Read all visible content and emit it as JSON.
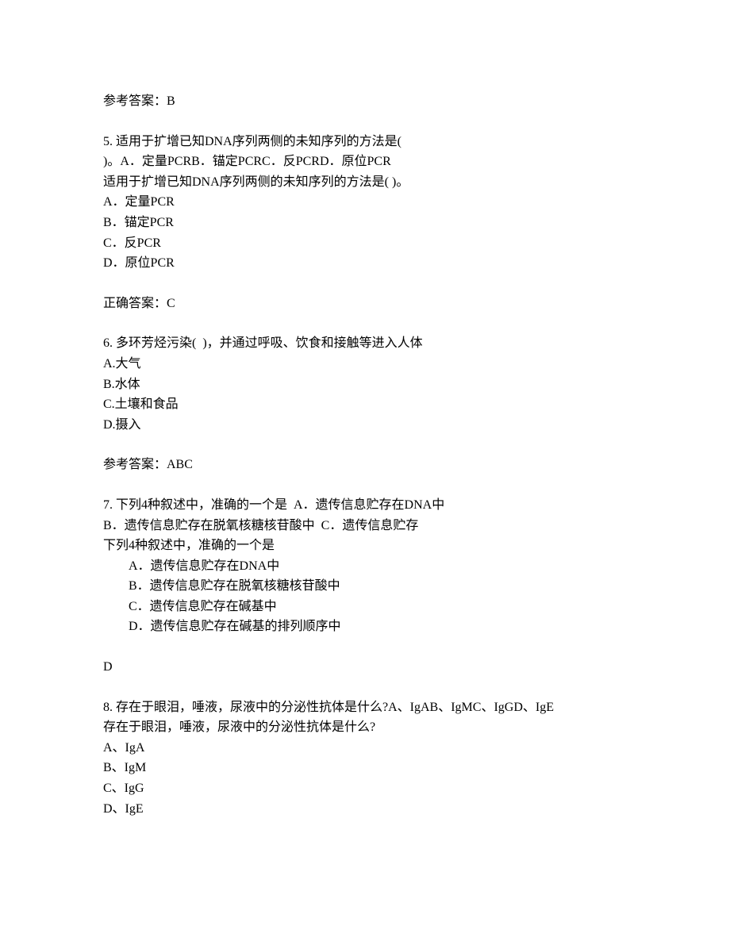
{
  "q4_answer": "参考答案：B",
  "q5": {
    "stem_line1": "5. 适用于扩增已知DNA序列两侧的未知序列的方法是(",
    "stem_line2": ")。A．定量PCRB．锚定PCRC．反PCRD．原位PCR",
    "stem_line3": "适用于扩增已知DNA序列两侧的未知序列的方法是( )。",
    "opt_a": "A．定量PCR",
    "opt_b": "B．锚定PCR",
    "opt_c": "C．反PCR",
    "opt_d": "D．原位PCR",
    "answer": "正确答案：C"
  },
  "q6": {
    "stem": "6. 多环芳烃污染(  )，并通过呼吸、饮食和接触等进入人体",
    "opt_a": "A.大气",
    "opt_b": "B.水体",
    "opt_c": "C.土壤和食品",
    "opt_d": "D.摄入",
    "answer": "参考答案：ABC"
  },
  "q7": {
    "stem_line1": "7. 下列4种叙述中，准确的一个是  A．遗传信息贮存在DNA中  ",
    "stem_line2": "B．遗传信息贮存在脱氧核糖核苷酸中  C．遗传信息贮存",
    "stem_line3": "下列4种叙述中，准确的一个是",
    "opt_a": "A．遗传信息贮存在DNA中",
    "opt_b": "B．遗传信息贮存在脱氧核糖核苷酸中",
    "opt_c": "C．遗传信息贮存在碱基中",
    "opt_d": "D．遗传信息贮存在碱基的排列顺序中",
    "answer": "D"
  },
  "q8": {
    "stem_line1": "8. 存在于眼泪，唾液，尿液中的分泌性抗体是什么?A、IgAB、IgMC、IgGD、IgE",
    "stem_line2": "存在于眼泪，唾液，尿液中的分泌性抗体是什么?",
    "opt_a": "A、IgA",
    "opt_b": "B、IgM",
    "opt_c": "C、IgG",
    "opt_d": "D、IgE"
  }
}
